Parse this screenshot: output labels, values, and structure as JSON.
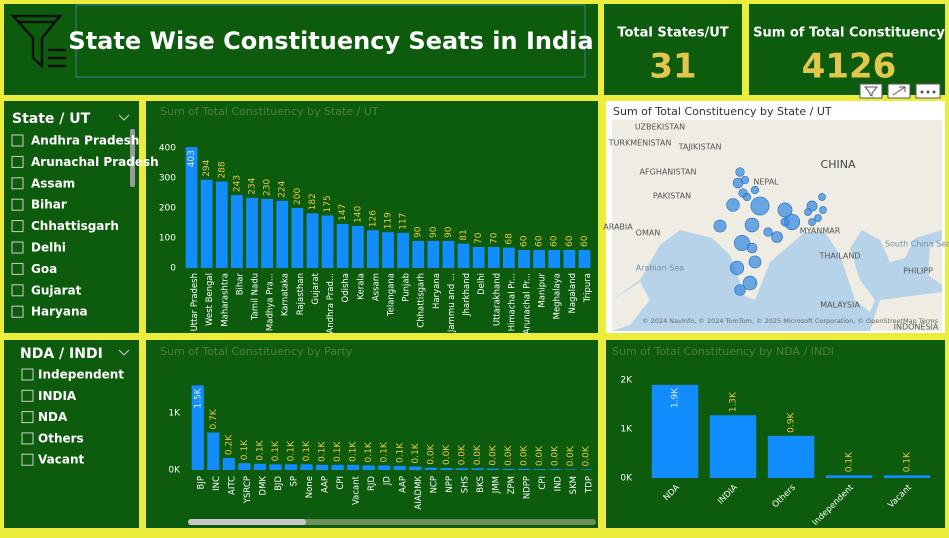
{
  "header": {
    "title": "State Wise Constituency Seats in India"
  },
  "cards": [
    {
      "label": "Total States/UT",
      "value": 31
    },
    {
      "label": "Sum of Total Constituency",
      "value": 4126
    }
  ],
  "slicers": [
    {
      "title": "State / UT",
      "items": [
        "Andhra Pradesh",
        "Arunachal Pradesh",
        "Assam",
        "Bihar",
        "Chhattisgarh",
        "Delhi",
        "Goa",
        "Gujarat",
        "Haryana"
      ]
    },
    {
      "title": "NDA / INDI",
      "items": [
        "Independent",
        "INDIA",
        "NDA",
        "Others",
        "Vacant"
      ]
    }
  ],
  "chart_data": [
    {
      "type": "bar",
      "title": "Sum of Total Constituency by State / UT",
      "categories": [
        "Uttar Pradesh",
        "West Bengal",
        "Maharashtra",
        "Bihar",
        "Tamil Nadu",
        "Madhya Pra...",
        "Karnataka",
        "Rajasthan",
        "Gujarat",
        "Andhra Prad...",
        "Odisha",
        "Kerala",
        "Assam",
        "Telangana",
        "Punjab",
        "Chhattisgarh",
        "Haryana",
        "Jammu and ...",
        "Jharkhand",
        "Delhi",
        "Uttarakhand",
        "Himachal Pr...",
        "Arunachal Pr...",
        "Manipur",
        "Meghalaya",
        "Nagaland",
        "Tripura"
      ],
      "values": [
        403,
        294,
        288,
        243,
        234,
        230,
        224,
        200,
        182,
        175,
        147,
        140,
        126,
        119,
        117,
        90,
        90,
        90,
        81,
        70,
        70,
        68,
        60,
        60,
        60,
        60,
        60
      ],
      "color": "#118dff",
      "ylim": [
        0,
        420
      ],
      "yticks": [
        0,
        100,
        200,
        300,
        400
      ]
    },
    {
      "type": "map",
      "title": "Sum of Total Constituency by State / UT",
      "place_labels": [
        "UZBEKISTAN",
        "TURKMENISTAN",
        "TAJIKISTAN",
        "AFGHANISTAN",
        "CHINA",
        "PAKISTAN",
        "NEPAL",
        "ARABIA",
        "OMAN",
        "MYANMAR",
        "THAILAND",
        "South China Sea",
        "Arabian Sea",
        "MALAYSIA",
        "PHILIPP",
        "INDONESIA"
      ],
      "attribution": "© 2024 NavInfo, © 2024 TomTom, © 2025 Microsoft Corporation, © OpenStreetMap Terms",
      "color": "#3b8de0"
    },
    {
      "type": "bar",
      "title": "Sum of Total Constituency by Party",
      "categories": [
        "BJP",
        "INC",
        "AITC",
        "YSRCP",
        "DMK",
        "BJD",
        "SP",
        "None",
        "AAP",
        "CPI",
        "Vacant",
        "RJD",
        "JD",
        "AAP",
        "AIADMK",
        "NCP",
        "NPP",
        "SHS",
        "BKS",
        "JMM",
        "ZPM",
        "NDPP",
        "CPI",
        "IND",
        "SKM",
        "TDP"
      ],
      "values": [
        1490,
        660,
        210,
        120,
        110,
        100,
        100,
        100,
        90,
        90,
        90,
        80,
        80,
        70,
        60,
        40,
        35,
        30,
        30,
        25,
        20,
        20,
        15,
        15,
        10,
        10
      ],
      "value_labels": [
        "1.5K",
        "0.7K",
        "0.2K",
        "0.1K",
        "0.1K",
        "0.1K",
        "0.1K",
        "0.1K",
        "0.1K",
        "0.1K",
        "0.1K",
        "0.1K",
        "0.1K",
        "0.1K",
        "0.1K",
        "0.0K",
        "0.0K",
        "0.0K",
        "0.0K",
        "0.0K",
        "0.0K",
        "0.0K",
        "0.0K",
        "0.0K",
        "0.0K",
        "0.0K"
      ],
      "color": "#118dff",
      "ylim": [
        0,
        1550
      ],
      "yticks": [
        {
          "value": 0,
          "label": "0K"
        },
        {
          "value": 1000,
          "label": "1K"
        }
      ]
    },
    {
      "type": "bar",
      "title": "Sum of Total Constituency by NDA / INDI",
      "categories": [
        "NDA",
        "INDIA",
        "Others",
        "Independent",
        "Vacant"
      ],
      "values": [
        1900,
        1280,
        860,
        55,
        55
      ],
      "value_labels": [
        "1.9K",
        "1.3K",
        "0.9K",
        "0.1K",
        "0.1K"
      ],
      "color": "#118dff",
      "ylim": [
        0,
        2000
      ],
      "yticks": [
        {
          "value": 0,
          "label": "0K"
        },
        {
          "value": 1000,
          "label": "1K"
        },
        {
          "value": 2000,
          "label": "2K"
        }
      ]
    }
  ]
}
